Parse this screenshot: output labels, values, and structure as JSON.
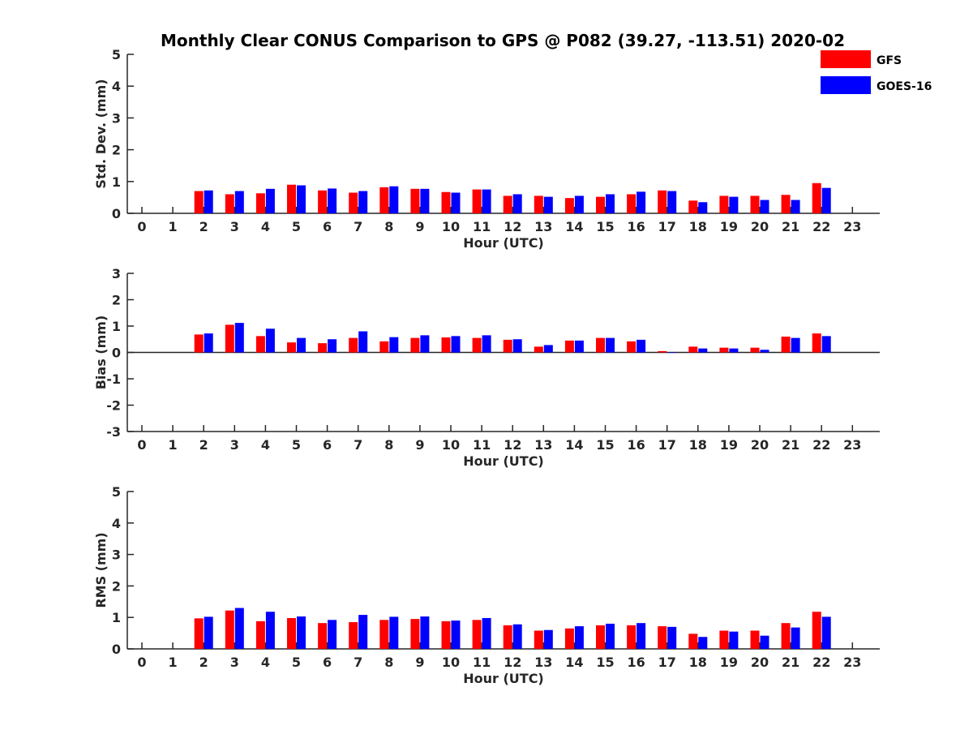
{
  "title": "Monthly Clear CONUS Comparison to GPS @ P082 (39.27, -113.51) 2020-02",
  "legend": [
    {
      "name": "GFS",
      "color": "#ff0000"
    },
    {
      "name": "GOES-16",
      "color": "#0000ff"
    }
  ],
  "chart_data": [
    {
      "type": "bar",
      "ylabel": "Std. Dev. (mm)",
      "xlabel": "Hour (UTC)",
      "ylim": [
        0,
        5
      ],
      "yticks": [
        "0",
        "1",
        "2",
        "3",
        "4",
        "5"
      ],
      "categories": [
        "0",
        "1",
        "2",
        "3",
        "4",
        "5",
        "6",
        "7",
        "8",
        "9",
        "10",
        "11",
        "12",
        "13",
        "14",
        "15",
        "16",
        "17",
        "18",
        "19",
        "20",
        "21",
        "22",
        "23"
      ],
      "series": [
        {
          "name": "GFS",
          "values": [
            null,
            null,
            0.7,
            0.6,
            0.63,
            0.9,
            0.72,
            0.65,
            0.82,
            0.77,
            0.67,
            0.75,
            0.55,
            0.55,
            0.48,
            0.52,
            0.6,
            0.72,
            0.4,
            0.55,
            0.55,
            0.58,
            0.95,
            null
          ]
        },
        {
          "name": "GOES-16",
          "values": [
            null,
            null,
            0.72,
            0.7,
            0.77,
            0.88,
            0.78,
            0.7,
            0.85,
            0.77,
            0.65,
            0.75,
            0.6,
            0.52,
            0.55,
            0.6,
            0.68,
            0.7,
            0.35,
            0.52,
            0.42,
            0.42,
            0.8,
            null
          ]
        }
      ]
    },
    {
      "type": "bar",
      "ylabel": "Bias (mm)",
      "xlabel": "Hour (UTC)",
      "ylim": [
        -3,
        3
      ],
      "yticks": [
        "-3",
        "-2",
        "-1",
        "0",
        "1",
        "2",
        "3"
      ],
      "categories": [
        "0",
        "1",
        "2",
        "3",
        "4",
        "5",
        "6",
        "7",
        "8",
        "9",
        "10",
        "11",
        "12",
        "13",
        "14",
        "15",
        "16",
        "17",
        "18",
        "19",
        "20",
        "21",
        "22",
        "23"
      ],
      "series": [
        {
          "name": "GFS",
          "values": [
            null,
            null,
            0.68,
            1.05,
            0.62,
            0.38,
            0.35,
            0.55,
            0.42,
            0.55,
            0.57,
            0.55,
            0.48,
            0.22,
            0.45,
            0.55,
            0.42,
            0.05,
            0.22,
            0.18,
            0.18,
            0.6,
            0.72,
            null
          ]
        },
        {
          "name": "GOES-16",
          "values": [
            null,
            null,
            0.72,
            1.12,
            0.9,
            0.55,
            0.5,
            0.8,
            0.58,
            0.65,
            0.62,
            0.65,
            0.5,
            0.28,
            0.45,
            0.55,
            0.48,
            0.0,
            0.15,
            0.15,
            0.1,
            0.55,
            0.62,
            null
          ]
        }
      ]
    },
    {
      "type": "bar",
      "ylabel": "RMS (mm)",
      "xlabel": "Hour (UTC)",
      "ylim": [
        0,
        5
      ],
      "yticks": [
        "0",
        "1",
        "2",
        "3",
        "4",
        "5"
      ],
      "categories": [
        "0",
        "1",
        "2",
        "3",
        "4",
        "5",
        "6",
        "7",
        "8",
        "9",
        "10",
        "11",
        "12",
        "13",
        "14",
        "15",
        "16",
        "17",
        "18",
        "19",
        "20",
        "21",
        "22",
        "23"
      ],
      "series": [
        {
          "name": "GFS",
          "values": [
            null,
            null,
            0.97,
            1.22,
            0.88,
            0.98,
            0.82,
            0.85,
            0.92,
            0.95,
            0.88,
            0.92,
            0.75,
            0.58,
            0.65,
            0.75,
            0.75,
            0.72,
            0.48,
            0.58,
            0.58,
            0.82,
            1.18,
            null
          ]
        },
        {
          "name": "GOES-16",
          "values": [
            null,
            null,
            1.02,
            1.3,
            1.18,
            1.03,
            0.92,
            1.08,
            1.02,
            1.03,
            0.9,
            0.98,
            0.78,
            0.6,
            0.72,
            0.8,
            0.82,
            0.7,
            0.38,
            0.55,
            0.42,
            0.68,
            1.02,
            null
          ]
        }
      ]
    }
  ]
}
